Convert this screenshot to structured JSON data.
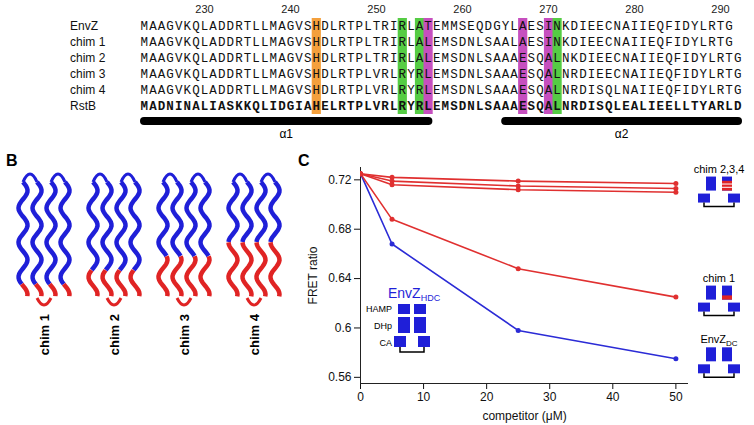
{
  "panel_letters": [
    "B",
    "C"
  ],
  "alignment": {
    "ruler": {
      "first_residue": 223,
      "ticks": [
        230,
        240,
        250,
        260,
        270,
        280,
        290
      ]
    },
    "rows": [
      {
        "name": "EnvZ",
        "sequence": "MAAGVKQLADDRTLLMAGVSHDLRTPLTRIRLATEMMSEQDGYLAESINKDIEECNAIIEQFIDYLRTG"
      },
      {
        "name": "chim 1",
        "sequence": "MAAGVKQLADDRTLLMAGVSHDLRTPLTRIRLALEMSDNLSAALAESINKDIEECNAIIEQFIDYLRTG"
      },
      {
        "name": "chim 2",
        "sequence": "MAAGVKQLADDRTLLMAGVSHDLRTPLTRIRLALEMSDNLSAAAESQALNKDIEECNAIIEQFIDYLRTG"
      },
      {
        "name": "chim 3",
        "sequence": "MAAGVKQLADDRTLLMAGVSHDLRTPLVRLRYRLEMSDNLSAAAESQALNRDIEECNAIIEQFIDYLRTG"
      },
      {
        "name": "chim 4",
        "sequence": "MAAGVKQLADDRTLLMAGVSHDLRTPLVRLRYRLEMSDNLSAAAESQALNRDISQLNAIIEQFIDYLRTG"
      },
      {
        "name": "RstB",
        "sequence": "MADNINALIASKKQLIDGIAHELRTPLVRLRYRLEMSDNLSAAAESQALNRDISQLEALIEELLTYARLD"
      }
    ],
    "highlights": [
      {
        "residue": 243,
        "color": "#f4a03c"
      },
      {
        "residue": 253,
        "color": "#55cc44"
      },
      {
        "residue": 255,
        "color": "#55cc44"
      },
      {
        "residue": 256,
        "color": "#c64fbf"
      },
      {
        "residue": 267,
        "color": "#c64fbf"
      },
      {
        "residue": 270,
        "color": "#c64fbf"
      },
      {
        "residue": 271,
        "color": "#55cc44"
      }
    ],
    "helices": [
      {
        "label": "α1",
        "start": 223,
        "end": 256
      },
      {
        "label": "α2",
        "start": 265,
        "end": 292
      }
    ]
  },
  "structures": {
    "labels": [
      "chim 1",
      "chim 2",
      "chim 3",
      "chim 4"
    ]
  },
  "chart_data": {
    "type": "line",
    "xlabel": "competitor (μM)",
    "ylabel": "FRET ratio",
    "x": [
      0,
      5,
      25,
      50
    ],
    "xlim": [
      0,
      52
    ],
    "xticks": [
      0,
      10,
      20,
      30,
      40,
      50
    ],
    "ylim": [
      0.555,
      0.73
    ],
    "yticks": [
      0.56,
      0.6,
      0.64,
      0.68,
      0.72
    ],
    "grid": false,
    "marker": "circle",
    "series": [
      {
        "name": "EnvZ",
        "name_subscript": "DC",
        "color": "#2b2bd6",
        "values": [
          0.725,
          0.668,
          0.598,
          0.575
        ]
      },
      {
        "name": "chim 1",
        "color": "#e03030",
        "values": [
          0.725,
          0.688,
          0.648,
          0.625
        ]
      },
      {
        "name": "chim 2",
        "color": "#e03030",
        "values": [
          0.725,
          0.722,
          0.719,
          0.717
        ]
      },
      {
        "name": "chim 3",
        "color": "#e03030",
        "values": [
          0.725,
          0.719,
          0.715,
          0.713
        ]
      },
      {
        "name": "chim 4",
        "color": "#e03030",
        "values": [
          0.725,
          0.716,
          0.712,
          0.71
        ]
      }
    ],
    "end_labels": [
      {
        "text": "chim 2,3,4",
        "series": [
          "chim 2",
          "chim 3",
          "chim 4"
        ]
      },
      {
        "text": "chim 1",
        "series": [
          "chim 1"
        ]
      },
      {
        "text": "EnvZ",
        "subscript": "DC",
        "series": [
          "EnvZ"
        ]
      }
    ],
    "inset": {
      "title": "EnvZ",
      "title_subscript": "HDC",
      "domains": [
        "HAMP",
        "DHp",
        "CA"
      ]
    }
  }
}
